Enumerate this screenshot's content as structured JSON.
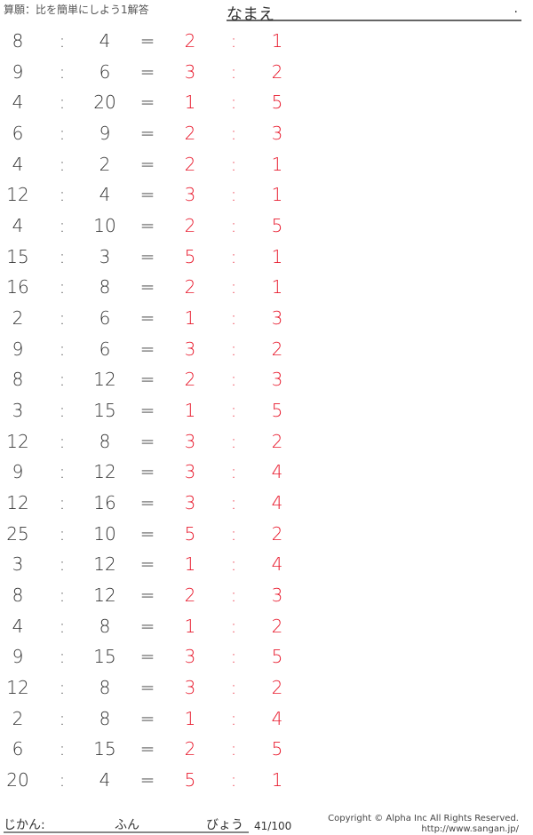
{
  "header": {
    "title": "算願：比を簡単にしよう1解答",
    "name_label": "なまえ",
    "name_dot": "."
  },
  "colors": {
    "answer": "#e8192c",
    "text": "#333333"
  },
  "problems": [
    {
      "a": "8",
      "b": "4",
      "c": "2",
      "d": "1"
    },
    {
      "a": "9",
      "b": "6",
      "c": "3",
      "d": "2"
    },
    {
      "a": "4",
      "b": "20",
      "c": "1",
      "d": "5"
    },
    {
      "a": "6",
      "b": "9",
      "c": "2",
      "d": "3"
    },
    {
      "a": "4",
      "b": "2",
      "c": "2",
      "d": "1"
    },
    {
      "a": "12",
      "b": "4",
      "c": "3",
      "d": "1"
    },
    {
      "a": "4",
      "b": "10",
      "c": "2",
      "d": "5"
    },
    {
      "a": "15",
      "b": "3",
      "c": "5",
      "d": "1"
    },
    {
      "a": "16",
      "b": "8",
      "c": "2",
      "d": "1"
    },
    {
      "a": "2",
      "b": "6",
      "c": "1",
      "d": "3"
    },
    {
      "a": "9",
      "b": "6",
      "c": "3",
      "d": "2"
    },
    {
      "a": "8",
      "b": "12",
      "c": "2",
      "d": "3"
    },
    {
      "a": "3",
      "b": "15",
      "c": "1",
      "d": "5"
    },
    {
      "a": "12",
      "b": "8",
      "c": "3",
      "d": "2"
    },
    {
      "a": "9",
      "b": "12",
      "c": "3",
      "d": "4"
    },
    {
      "a": "12",
      "b": "16",
      "c": "3",
      "d": "4"
    },
    {
      "a": "25",
      "b": "10",
      "c": "5",
      "d": "2"
    },
    {
      "a": "3",
      "b": "12",
      "c": "1",
      "d": "4"
    },
    {
      "a": "8",
      "b": "12",
      "c": "2",
      "d": "3"
    },
    {
      "a": "4",
      "b": "8",
      "c": "1",
      "d": "2"
    },
    {
      "a": "9",
      "b": "15",
      "c": "3",
      "d": "5"
    },
    {
      "a": "12",
      "b": "8",
      "c": "3",
      "d": "2"
    },
    {
      "a": "2",
      "b": "8",
      "c": "1",
      "d": "4"
    },
    {
      "a": "6",
      "b": "15",
      "c": "2",
      "d": "5"
    },
    {
      "a": "20",
      "b": "4",
      "c": "5",
      "d": "1"
    }
  ],
  "symbols": {
    "colon": ":",
    "equals": "="
  },
  "footer": {
    "time_label": "じかん:",
    "minutes_label": "ふん",
    "seconds_label": "びょう",
    "page": "41/100",
    "copyright": "Copyright © Alpha Inc All Rights Reserved.",
    "url": "http://www.sangan.jp/"
  }
}
